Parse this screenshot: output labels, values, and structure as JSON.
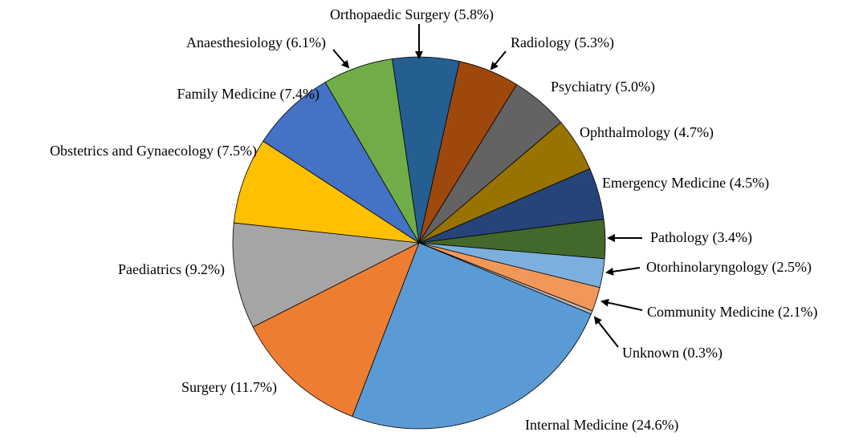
{
  "chart_data": {
    "type": "pie",
    "title": "",
    "direction": "clockwise",
    "slices": [
      {
        "label": "Orthopaedic Surgery (5.8%)",
        "name": "Orthopaedic Surgery",
        "value": 5.8,
        "color": "#255e91"
      },
      {
        "label": "Radiology (5.3%)",
        "name": "Radiology",
        "value": 5.3,
        "color": "#9e480e"
      },
      {
        "label": "Psychiatry (5.0%)",
        "name": "Psychiatry",
        "value": 5.0,
        "color": "#636363"
      },
      {
        "label": "Ophthalmology (4.7%)",
        "name": "Ophthalmology",
        "value": 4.7,
        "color": "#997300"
      },
      {
        "label": "Emergency Medicine (4.5%)",
        "name": "Emergency Medicine",
        "value": 4.5,
        "color": "#264478"
      },
      {
        "label": "Pathology (3.4%)",
        "name": "Pathology",
        "value": 3.4,
        "color": "#43682b"
      },
      {
        "label": "Otorhinolaryngology (2.5%)",
        "name": "Otorhinolaryngology",
        "value": 2.5,
        "color": "#7cafdd"
      },
      {
        "label": "Community Medicine (2.1%)",
        "name": "Community Medicine",
        "value": 2.1,
        "color": "#f1975a"
      },
      {
        "label": "Unknown (0.3%)",
        "name": "Unknown",
        "value": 0.3,
        "color": "#b7b7b7"
      },
      {
        "label": "Internal Medicine (24.6%)",
        "name": "Internal Medicine",
        "value": 24.6,
        "color": "#5b9bd5"
      },
      {
        "label": "Surgery (11.7%)",
        "name": "Surgery",
        "value": 11.7,
        "color": "#ed7d31"
      },
      {
        "label": "Paediatrics (9.2%)",
        "name": "Paediatrics",
        "value": 9.2,
        "color": "#a5a5a5"
      },
      {
        "label": "Obstetrics and Gynaecology (7.5%)",
        "name": "Obstetrics and Gynaecology",
        "value": 7.5,
        "color": "#ffc000"
      },
      {
        "label": "Family Medicine (7.4%)",
        "name": "Family Medicine",
        "value": 7.4,
        "color": "#4472c4"
      },
      {
        "label": "Anaesthesiology (6.1%)",
        "name": "Anaesthesiology",
        "value": 6.1,
        "color": "#70ad47"
      }
    ]
  }
}
